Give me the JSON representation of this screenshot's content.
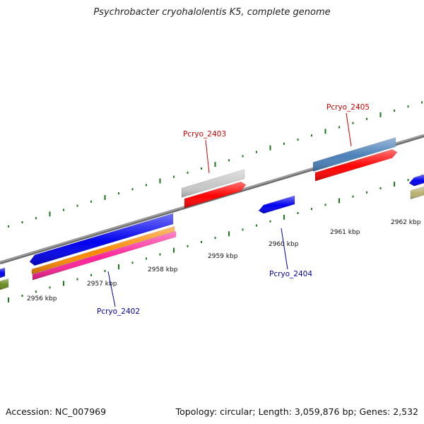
{
  "title": "Psychrobacter cryohalolentis K5, complete genome",
  "footer": {
    "accession": "Accession: NC_007969",
    "summary": "Topology: circular; Length: 3,059,876 bp; Genes: 2,532"
  },
  "colors": {
    "backbone": "#8a8a8a",
    "tick": "#1a7a1a",
    "forward_label": "#cc0000",
    "reverse_label": "#0000aa"
  },
  "scale_labels": [
    "2956 kbp",
    "2957 kbp",
    "2958 kbp",
    "2959 kbp",
    "2960 kbp",
    "2961 kbp",
    "2962 kbp"
  ],
  "gene_labels": [
    {
      "name": "Pcryo_2403",
      "strand": "forward"
    },
    {
      "name": "Pcryo_2405",
      "strand": "forward"
    },
    {
      "name": "Pcryo_2402",
      "strand": "reverse"
    },
    {
      "name": "Pcryo_2404",
      "strand": "reverse"
    }
  ],
  "features": [
    {
      "id": "fwd-gray-gene",
      "color": "#c8c8c8"
    },
    {
      "id": "fwd-red-gene-2403",
      "color": "#ff0000"
    },
    {
      "id": "fwd-steelblue-gene",
      "color": "#4a80b8"
    },
    {
      "id": "fwd-red-gene-2405",
      "color": "#ff0000"
    },
    {
      "id": "fwd-blue-gene-right",
      "color": "#0000ee"
    },
    {
      "id": "fwd-olive-gene-right",
      "color": "#b8b070"
    },
    {
      "id": "rev-blue-gene-left-edge",
      "color": "#0000ee"
    },
    {
      "id": "rev-olive-gene-left-edge",
      "color": "#6a8a20"
    },
    {
      "id": "rev-blue-gene-large",
      "color": "#0000ee"
    },
    {
      "id": "rev-orange-gene",
      "color": "#ff8800"
    },
    {
      "id": "rev-pink-gene",
      "color": "#ff2299"
    },
    {
      "id": "rev-blue-gene-2404",
      "color": "#0000ee"
    }
  ]
}
